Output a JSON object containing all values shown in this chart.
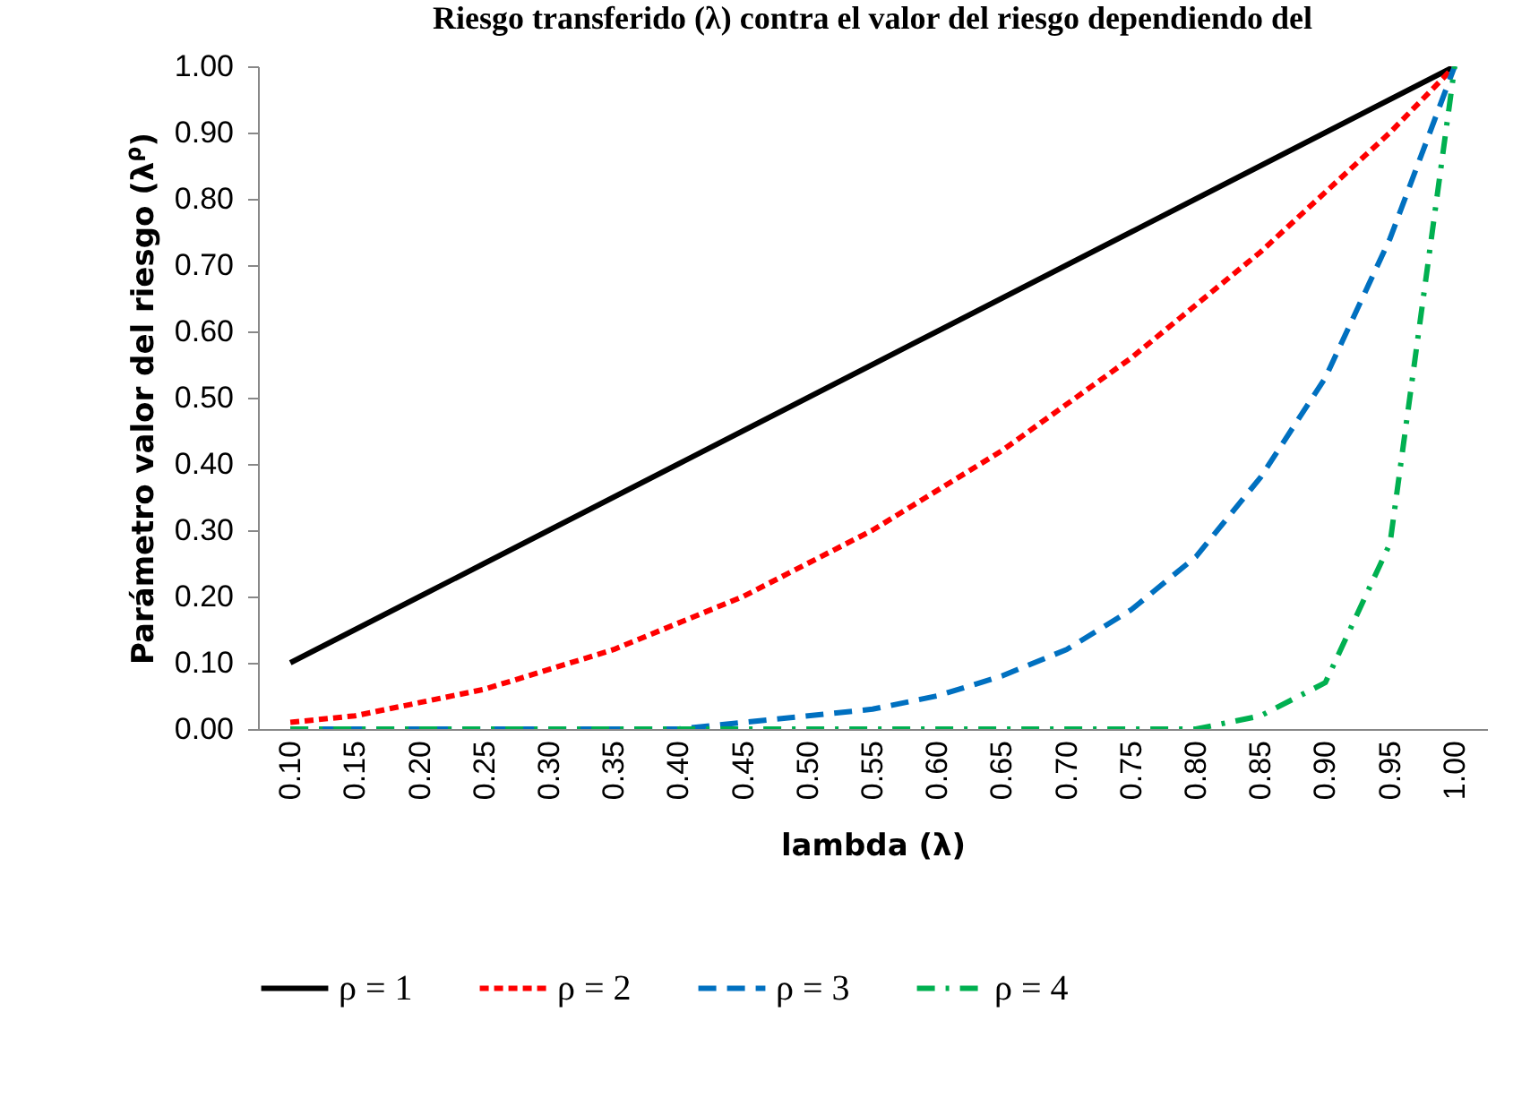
{
  "chart_data": {
    "type": "line",
    "title": "Riesgo transferido (λ) contra el valor del riesgo dependiendo del",
    "xlabel": "lambda (λ)",
    "ylabel": "Parámetro valor del riesgo (λ$^{ρ}$)",
    "categories": [
      "0.10",
      "0.15",
      "0.20",
      "0.25",
      "0.30",
      "0.35",
      "0.40",
      "0.45",
      "0.50",
      "0.55",
      "0.60",
      "0.65",
      "0.70",
      "0.75",
      "0.80",
      "0.85",
      "0.90",
      "0.95",
      "1.00"
    ],
    "series": [
      {
        "name": "ρ = 1",
        "color": "#000000",
        "line_style": "solid",
        "values": [
          0.1,
          0.15,
          0.2,
          0.25,
          0.3,
          0.35,
          0.4,
          0.45,
          0.5,
          0.55,
          0.6,
          0.65,
          0.7,
          0.75,
          0.8,
          0.85,
          0.9,
          0.95,
          1.0
        ]
      },
      {
        "name": "ρ = 2",
        "color": "#ff0000",
        "line_style": "dashed",
        "values": [
          0.01,
          0.02,
          0.04,
          0.06,
          0.09,
          0.12,
          0.16,
          0.2,
          0.25,
          0.3,
          0.36,
          0.42,
          0.49,
          0.56,
          0.64,
          0.72,
          0.81,
          0.9,
          1.0
        ]
      },
      {
        "name": "ρ = 3",
        "color": "#0070c0",
        "line_style": "dashed",
        "values": [
          0.0,
          0.0,
          0.0,
          0.0,
          0.0,
          0.0,
          0.0,
          0.01,
          0.02,
          0.03,
          0.05,
          0.08,
          0.12,
          0.18,
          0.26,
          0.38,
          0.53,
          0.74,
          1.0
        ]
      },
      {
        "name": "ρ = 4",
        "color": "#00b050",
        "line_style": "dashed",
        "values": [
          0.0,
          0.0,
          0.0,
          0.0,
          0.0,
          0.0,
          0.0,
          0.0,
          0.0,
          0.0,
          0.0,
          0.0,
          0.0,
          0.0,
          0.0,
          0.02,
          0.07,
          0.28,
          1.0
        ]
      }
    ],
    "ylim": [
      0,
      1
    ],
    "yticks": [
      {
        "value": 0,
        "label": "0.00"
      },
      {
        "value": 0.1,
        "label": "0.10"
      },
      {
        "value": 0.2,
        "label": "0.20"
      },
      {
        "value": 0.3,
        "label": "0.30"
      },
      {
        "value": 0.4,
        "label": "0.40"
      },
      {
        "value": 0.5,
        "label": "0.50"
      },
      {
        "value": 0.6,
        "label": "0.60"
      },
      {
        "value": 0.7,
        "label": "0.70"
      },
      {
        "value": 0.8,
        "label": "0.80"
      },
      {
        "value": 0.9,
        "label": "0.90"
      },
      {
        "value": 1,
        "label": "1.00"
      }
    ],
    "grid": false,
    "legend": "bottom",
    "marker": "none"
  }
}
